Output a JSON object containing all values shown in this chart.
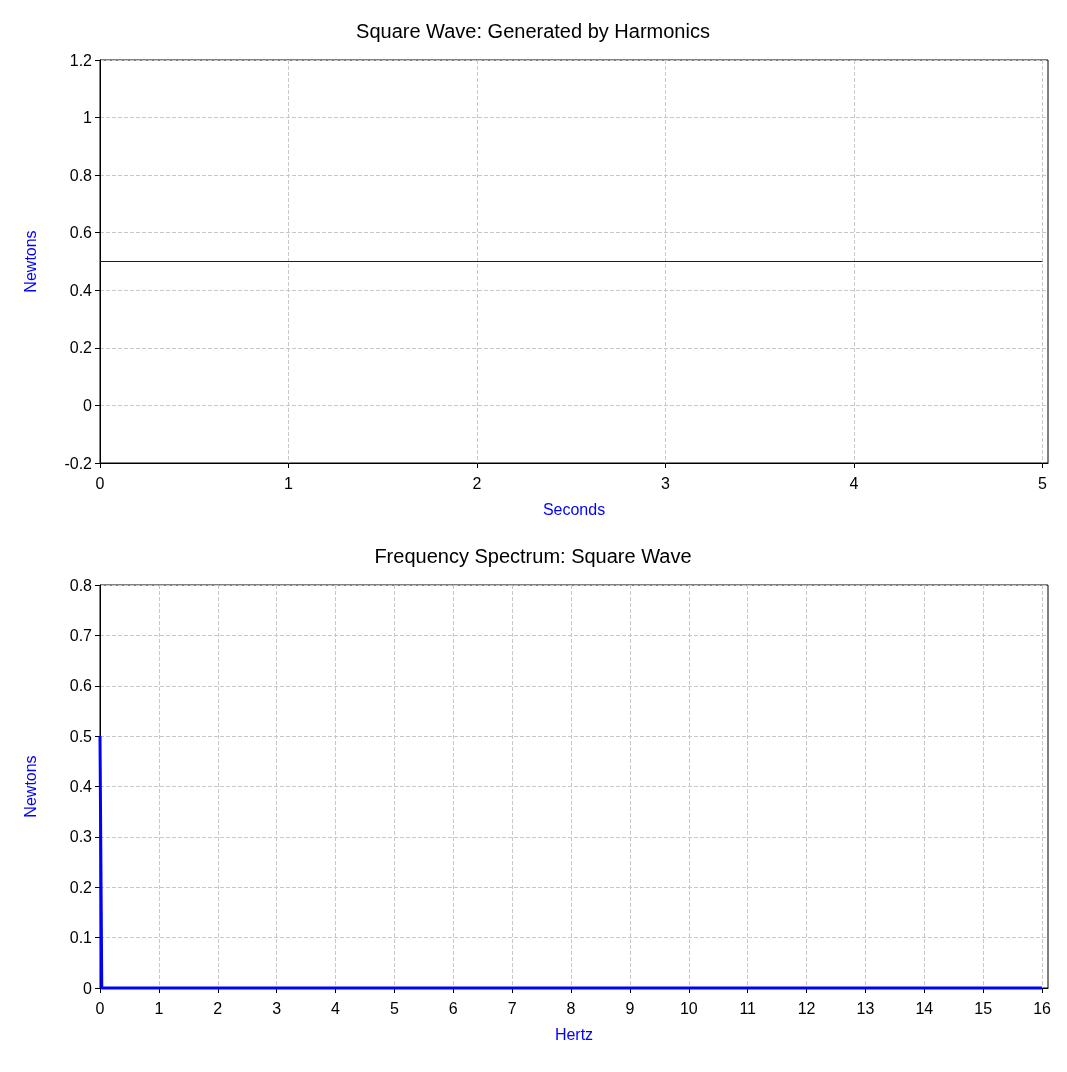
{
  "chart_data": [
    {
      "type": "line",
      "title": "Square Wave: Generated by Harmonics",
      "xlabel": "Seconds",
      "ylabel": "Newtons",
      "x": [
        0,
        5
      ],
      "values": [
        0.5,
        0.5
      ],
      "color": "#0000ff",
      "xlim": [
        0,
        5.03
      ],
      "xticks": [
        0,
        1,
        2,
        3,
        4,
        5
      ],
      "ylim": [
        -0.2,
        1.2
      ],
      "yticks": [
        -0.2,
        0,
        0.2,
        0.4,
        0.6,
        0.8,
        1,
        1.2
      ],
      "grid": true,
      "marker": "none",
      "line_style": "solid"
    },
    {
      "type": "line",
      "title": "Frequency Spectrum: Square Wave",
      "xlabel": "Hertz",
      "ylabel": "Newtons",
      "x": [
        0,
        0.03,
        16
      ],
      "values": [
        0.5,
        0,
        0
      ],
      "color": "#0000ff",
      "xlim": [
        0,
        16.1
      ],
      "xticks": [
        0,
        1,
        2,
        3,
        4,
        5,
        6,
        7,
        8,
        9,
        10,
        11,
        12,
        13,
        14,
        15,
        16
      ],
      "ylim": [
        0,
        0.8
      ],
      "yticks": [
        0,
        0.1,
        0.2,
        0.3,
        0.4,
        0.5,
        0.6,
        0.7,
        0.8
      ],
      "grid": true,
      "marker": "none",
      "line_style": "solid"
    }
  ]
}
